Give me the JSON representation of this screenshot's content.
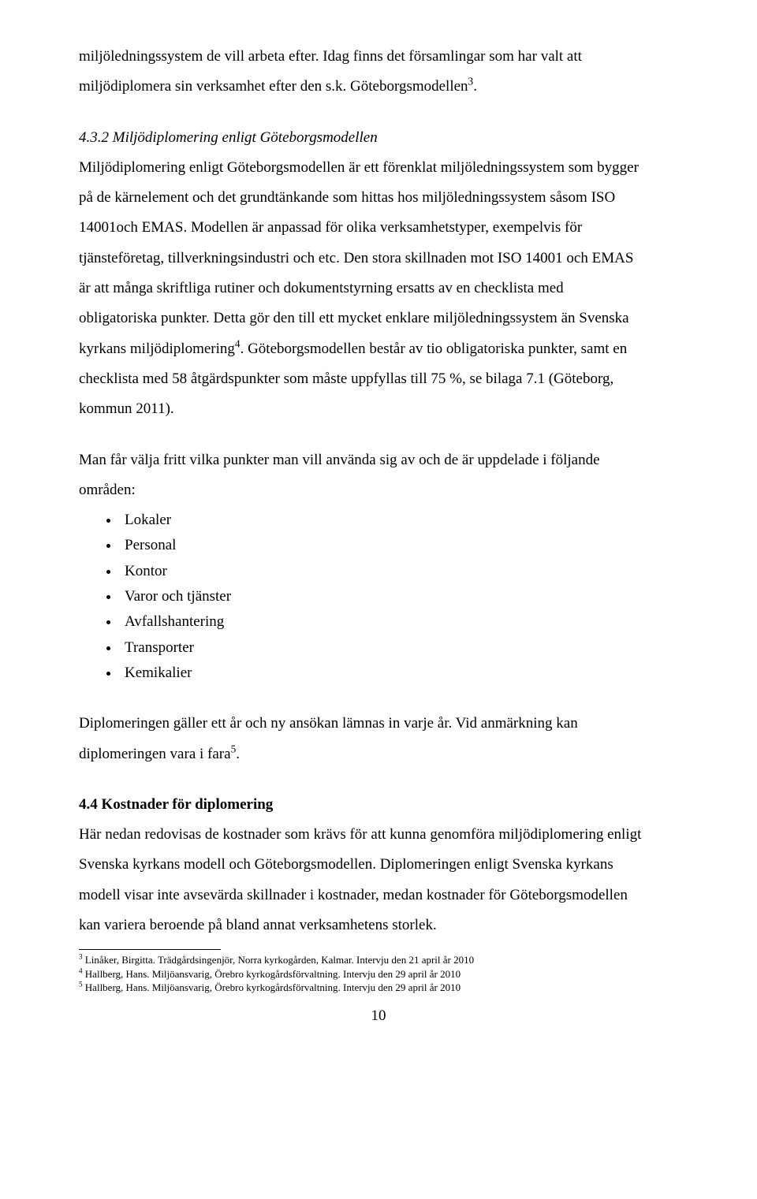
{
  "intro_tail": {
    "line1": "miljöledningssystem de vill arbeta efter. Idag finns det församlingar som har valt att",
    "line2_pre": "miljödiplomera sin verksamhet efter den s.k. Göteborgsmodellen",
    "line2_sup": "3",
    "line2_post": "."
  },
  "section432": {
    "heading": "4.3.2 Miljödiplomering enligt Göteborgsmodellen",
    "p1_l1": "Miljödiplomering enligt Göteborgsmodellen är ett förenklat miljöledningssystem som bygger",
    "p1_l2": "på de kärnelement och det grundtänkande som hittas hos miljöledningssystem såsom ISO",
    "p1_l3": "14001och EMAS. Modellen är anpassad för olika verksamhetstyper, exempelvis för",
    "p1_l4": "tjänsteföretag, tillverkningsindustri och etc. Den stora skillnaden mot ISO 14001 och EMAS",
    "p1_l5": "är att många skriftliga rutiner och dokumentstyrning ersatts av en checklista med",
    "p1_l6": "obligatoriska punkter. Detta gör den till ett mycket enklare miljöledningssystem än Svenska",
    "p1_l7_pre": "kyrkans miljödiplomering",
    "p1_l7_sup": "4",
    "p1_l7_post": ". Göteborgsmodellen består av tio obligatoriska punkter, samt en",
    "p1_l8": "checklista med 58 åtgärdspunkter som måste uppfyllas till 75 %, se bilaga 7.1 (Göteborg,",
    "p1_l9": "kommun 2011).",
    "p2_l1": "Man får välja fritt vilka punkter man vill använda sig av och de är uppdelade i följande",
    "p2_l2": "områden:",
    "bullets": [
      "Lokaler",
      "Personal",
      "Kontor",
      "Varor och tjänster",
      "Avfallshantering",
      "Transporter",
      "Kemikalier"
    ],
    "p3_l1": "Diplomeringen gäller ett år och ny ansökan lämnas in varje år. Vid anmärkning kan",
    "p3_l2_pre": "diplomeringen vara i fara",
    "p3_l2_sup": "5",
    "p3_l2_post": "."
  },
  "section44": {
    "heading": "4.4 Kostnader för diplomering",
    "p1_l1": "Här nedan redovisas de kostnader som krävs för att kunna genomföra miljödiplomering enligt",
    "p1_l2": "Svenska kyrkans modell och Göteborgsmodellen. Diplomeringen enligt Svenska kyrkans",
    "p1_l3": "modell visar inte avsevärda skillnader i kostnader, medan kostnader för Göteborgsmodellen",
    "p1_l4": "kan variera beroende på bland annat verksamhetens storlek."
  },
  "footnotes": {
    "f3_sup": "3",
    "f3": " Linåker, Birgitta. Trädgårdsingenjör, Norra kyrkogården, Kalmar. Intervju den 21 april år 2010",
    "f4_sup": "4",
    "f4": " Hallberg, Hans. Miljöansvarig, Örebro kyrkogårdsförvaltning. Intervju den 29 april år 2010",
    "f5_sup": "5",
    "f5": " Hallberg, Hans. Miljöansvarig, Örebro kyrkogårdsförvaltning. Intervju den 29 april år 2010"
  },
  "page_number": "10"
}
